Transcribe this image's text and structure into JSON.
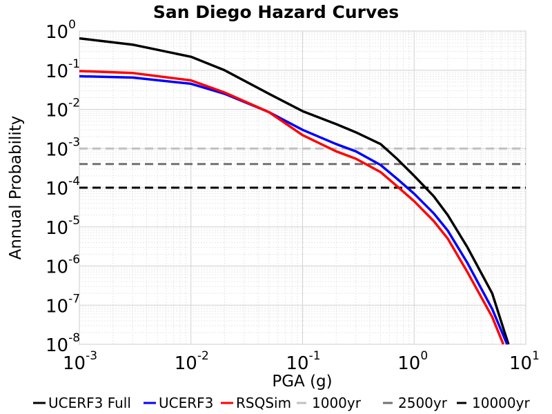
{
  "chart_data": {
    "type": "line",
    "title": "San Diego Hazard Curves",
    "xlabel": "PGA (g)",
    "ylabel": "Annual Probability",
    "x_scale": "log",
    "y_scale": "log",
    "xlim": [
      0.001,
      10
    ],
    "ylim": [
      1e-08,
      1
    ],
    "x_tick_base": "10",
    "x_tick_exponents": [
      "-3",
      "-2",
      "-1",
      "0",
      "1"
    ],
    "y_tick_base": "10",
    "y_tick_exponents": [
      "0",
      "-1",
      "-2",
      "-3",
      "-4",
      "-5",
      "-6",
      "-7",
      "-8"
    ],
    "grid": true,
    "legend_position": "bottom",
    "series": [
      {
        "name": "UCERF3 Full",
        "color": "#000000",
        "style": "solid",
        "x": [
          0.001,
          0.003,
          0.01,
          0.02,
          0.05,
          0.1,
          0.2,
          0.3,
          0.5,
          0.7,
          1.0,
          1.5,
          2.0,
          3.0,
          5.0,
          7.0
        ],
        "y": [
          0.65,
          0.45,
          0.22,
          0.1,
          0.025,
          0.009,
          0.0042,
          0.0026,
          0.0013,
          0.00055,
          0.0002,
          6e-05,
          2e-05,
          3e-06,
          2e-07,
          1e-08
        ]
      },
      {
        "name": "UCERF3",
        "color": "#0000ff",
        "style": "solid",
        "x": [
          0.001,
          0.003,
          0.01,
          0.02,
          0.05,
          0.1,
          0.2,
          0.3,
          0.5,
          0.7,
          1.0,
          1.5,
          2.0,
          3.0,
          5.0,
          6.8
        ],
        "y": [
          0.07,
          0.065,
          0.045,
          0.025,
          0.0085,
          0.003,
          0.0013,
          0.00085,
          0.00038,
          0.00017,
          7e-05,
          2.2e-05,
          8e-06,
          1.2e-06,
          8e-08,
          1e-08
        ]
      },
      {
        "name": "RSQSim",
        "color": "#ff0000",
        "style": "solid",
        "x": [
          0.001,
          0.003,
          0.01,
          0.02,
          0.05,
          0.1,
          0.2,
          0.3,
          0.5,
          0.7,
          1.0,
          1.5,
          2.0,
          3.0,
          5.0,
          6.3
        ],
        "y": [
          0.095,
          0.085,
          0.055,
          0.027,
          0.0085,
          0.0022,
          0.00085,
          0.00055,
          0.00025,
          0.00011,
          4.5e-05,
          1.4e-05,
          5e-06,
          7e-07,
          5e-08,
          1e-08
        ]
      },
      {
        "name": "1000yr",
        "color": "#c0c0c0",
        "style": "dashed",
        "x": [
          0.001,
          10
        ],
        "y": [
          0.001,
          0.001
        ]
      },
      {
        "name": "2500yr",
        "color": "#707070",
        "style": "dashed",
        "x": [
          0.001,
          10
        ],
        "y": [
          0.0004,
          0.0004
        ]
      },
      {
        "name": "10000yr",
        "color": "#000000",
        "style": "dashed",
        "x": [
          0.001,
          10
        ],
        "y": [
          0.0001,
          0.0001
        ]
      }
    ]
  }
}
